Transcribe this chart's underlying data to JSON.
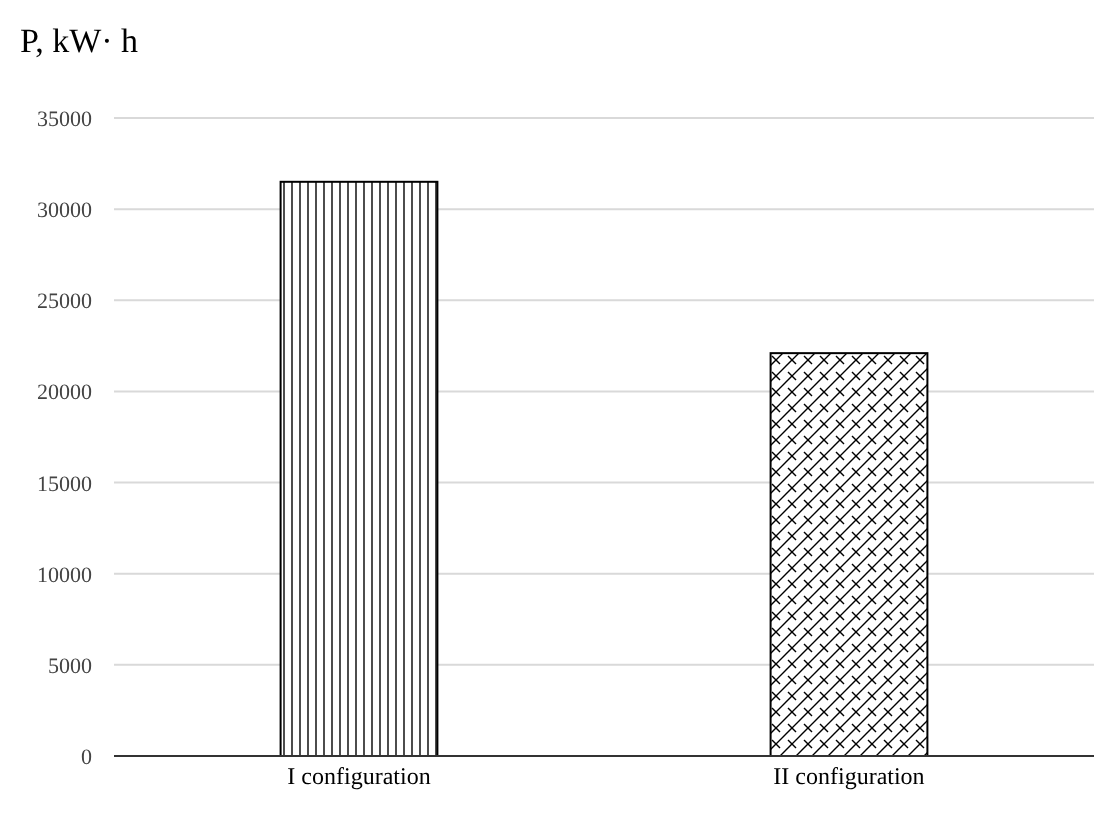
{
  "chart_data": {
    "type": "bar",
    "ylabel": "P, kW· h",
    "categories": [
      "I configuration",
      "II configuration"
    ],
    "values": [
      31500,
      22100
    ],
    "colors": [
      "#000000",
      "#000000"
    ],
    "ylim": [
      0,
      35000
    ],
    "yticks": [
      0,
      5000,
      10000,
      15000,
      20000,
      25000,
      30000,
      35000
    ],
    "grid": "y"
  }
}
